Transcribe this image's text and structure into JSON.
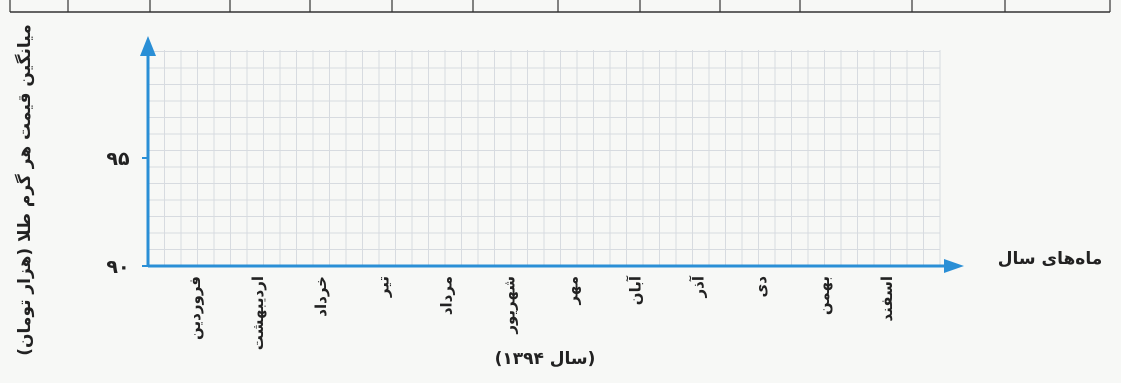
{
  "chart_data": {
    "type": "line",
    "ylabel": "میانگین قیمت هر گرم طلا (هزار تومان)",
    "xlabel": "ماه‌های سال",
    "year_label": "(سال ۱۳۹۴)",
    "y_ticks": [
      "۹۰",
      "۹۵"
    ],
    "categories": [
      "فروردین",
      "اردیبهشت",
      "خرداد",
      "تیر",
      "مرداد",
      "شهریور",
      "مهر",
      "آبان",
      "آذر",
      "دی",
      "بهمن",
      "اسفند"
    ],
    "ylim": [
      90,
      99.5
    ],
    "grid": true,
    "series": []
  },
  "colors": {
    "axis": "#2a8fd6",
    "grid": "#d7dbe0",
    "text": "#222222"
  }
}
